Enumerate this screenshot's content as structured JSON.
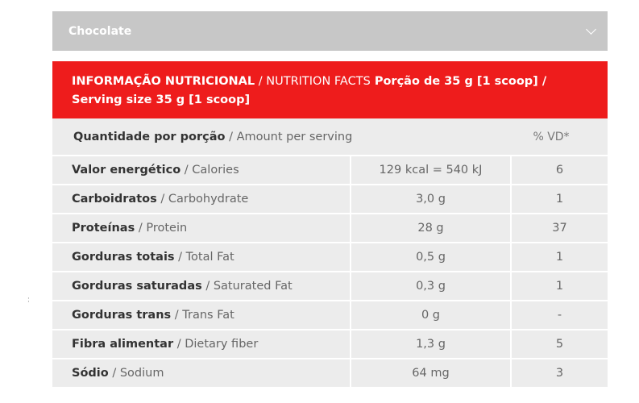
{
  "flavor_select": {
    "selected": "Chocolate",
    "icon": "chevron-down-icon"
  },
  "nutrition": {
    "header": {
      "pt_title": "INFORMAÇÃO NUTRICIONAL",
      "separator": " / ",
      "en_title": "NUTRITION FACTS",
      "serving_pt": " Porção de 35 g [1 scoop] /",
      "serving_en": "Serving size 35 g [1 scoop]"
    },
    "amount_row": {
      "label_pt": "Quantidade por porção",
      "separator": " / ",
      "label_en": "Amount per serving",
      "vd_label": "% VD*"
    },
    "rows": [
      {
        "name_pt": "Valor energético",
        "name_en": "Calories",
        "value": "129 kcal = 540 kJ",
        "vd": "6"
      },
      {
        "name_pt": "Carboidratos",
        "name_en": "Carbohydrate",
        "value": "3,0 g",
        "vd": "1"
      },
      {
        "name_pt": "Proteínas",
        "name_en": "Protein",
        "value": "28 g",
        "vd": "37"
      },
      {
        "name_pt": "Gorduras totais",
        "name_en": "Total Fat",
        "value": "0,5 g",
        "vd": "1"
      },
      {
        "name_pt": "Gorduras saturadas",
        "name_en": "Saturated Fat",
        "value": "0,3 g",
        "vd": "1"
      },
      {
        "name_pt": "Gorduras trans",
        "name_en": "Trans Fat",
        "value": "0 g",
        "vd": "-"
      },
      {
        "name_pt": "Fibra alimentar",
        "name_en": "Dietary fiber",
        "value": "1,3 g",
        "vd": "5"
      },
      {
        "name_pt": "Sódio",
        "name_en": "Sodium",
        "value": "64 mg",
        "vd": "3"
      }
    ],
    "row_separator": " / "
  },
  "colors": {
    "header_red": "#ee1c1c",
    "select_gray": "#c7c7c7",
    "row_gray": "#ececec"
  }
}
